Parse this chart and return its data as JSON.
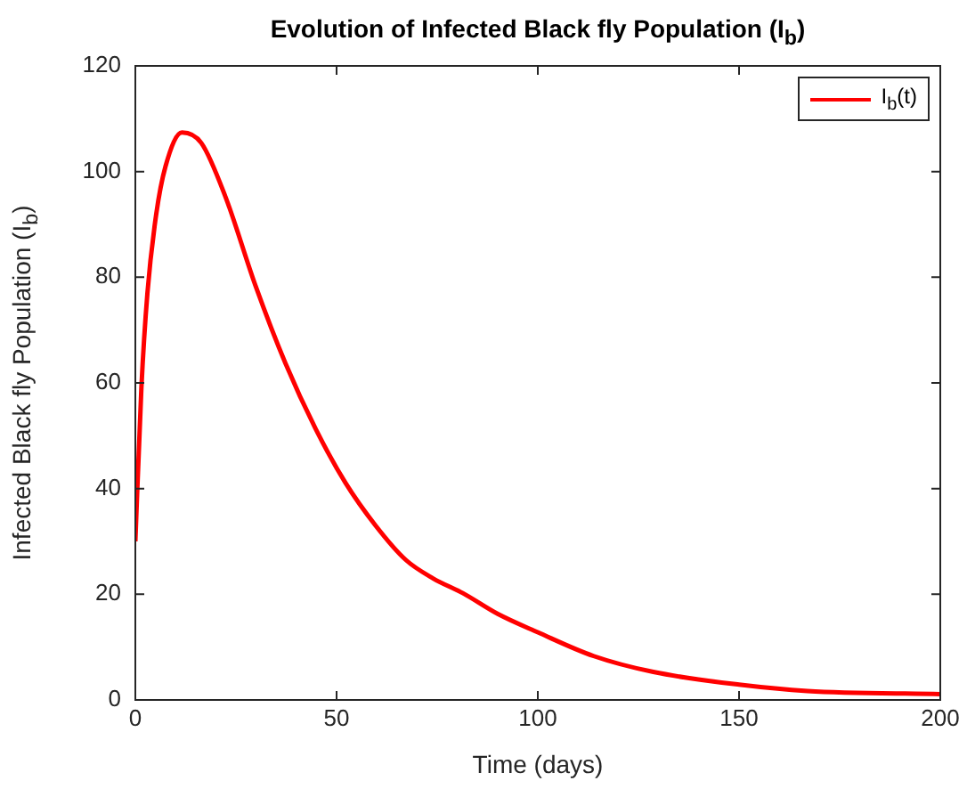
{
  "chart_data": {
    "type": "line",
    "title": "Evolution of Infected Black fly Population (I$_{b}$)",
    "xlabel": "Time (days)",
    "ylabel": "Infected Black fly Population (I$_{b}$)",
    "x": [
      0,
      1.5,
      3,
      5.2,
      7.5,
      11.6,
      16.4,
      22.4,
      29.9,
      37.3,
      44.8,
      52.2,
      59.7,
      67.2,
      74,
      81.4,
      90,
      100,
      113.9,
      128.7,
      150,
      167,
      200
    ],
    "series": [
      {
        "name": "I$_{b}$(t)",
        "color": "#ff0000",
        "values": [
          30,
          59,
          77,
          92,
          101,
          107.4,
          105.4,
          95.2,
          78.3,
          63.7,
          51.3,
          41.1,
          33,
          26.5,
          23,
          20.2,
          16.3,
          12.8,
          8.3,
          5.3,
          2.9,
          1.7,
          1.1
        ]
      }
    ],
    "xlim": [
      0,
      200
    ],
    "xticks": [
      0,
      50,
      100,
      150,
      200
    ],
    "ylim": [
      0,
      120
    ],
    "yticks": [
      0,
      20,
      40,
      60,
      80,
      100,
      120
    ],
    "legend": "top right",
    "marker": "none",
    "line_style": "solid"
  }
}
